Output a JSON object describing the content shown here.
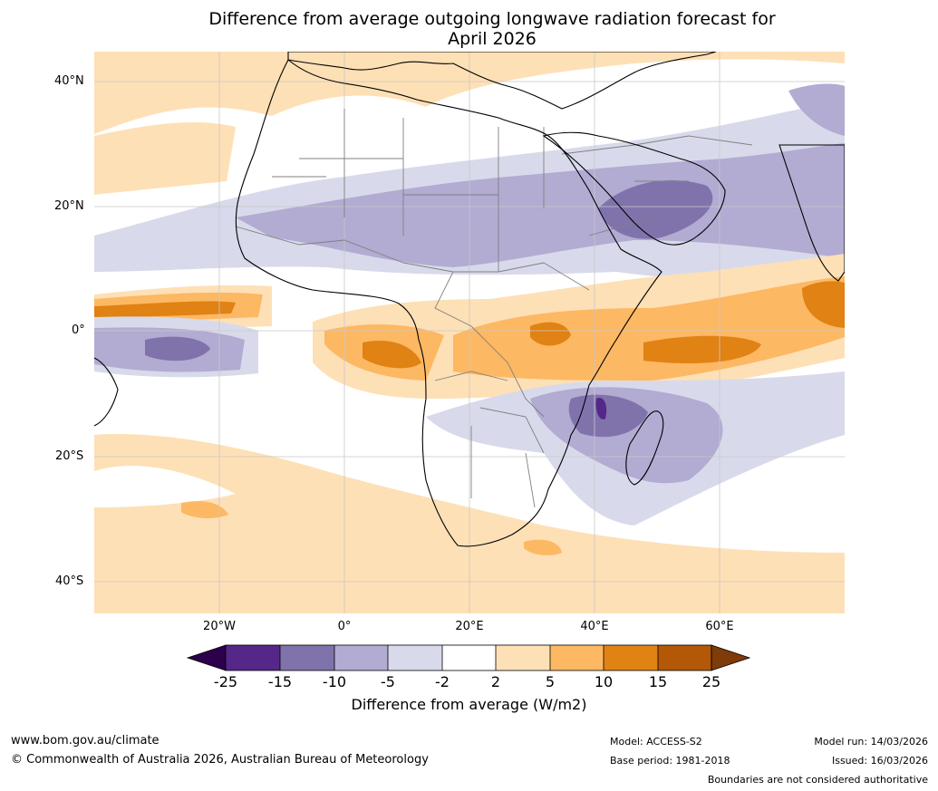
{
  "title": {
    "line1": "Difference from average outgoing longwave radiation forecast for",
    "line2": "April 2026"
  },
  "map": {
    "lat_ticks": [
      "40°N",
      "20°N",
      "0°",
      "20°S",
      "40°S"
    ],
    "lon_ticks": [
      "20°W",
      "0°",
      "20°E",
      "40°E",
      "60°E"
    ],
    "colors": {
      "land_outline": "#000000",
      "border": "#808080",
      "grid": "#c8c8c8"
    }
  },
  "colorbar": {
    "title": "Difference from average (W/m2)",
    "tick_labels": [
      "-25",
      "-15",
      "-10",
      "-5",
      "-2",
      "2",
      "5",
      "10",
      "15",
      "25"
    ],
    "colors": [
      "#2d004b",
      "#542788",
      "#8073ac",
      "#b2abd2",
      "#d8daeb",
      "#ffffff",
      "#fee0b6",
      "#fdb863",
      "#e08214",
      "#b35806",
      "#7f3b08"
    ]
  },
  "footer": {
    "website": "www.bom.gov.au/climate",
    "copyright": "© Commonwealth of Australia 2026, Australian Bureau of Meteorology",
    "model": "Model: ACCESS-S2",
    "base_period": "Base period: 1981-2018",
    "model_run": "Model run: 14/03/2026",
    "issued": "Issued: 16/03/2026",
    "disclaimer": "Boundaries are not considered authoritative"
  }
}
